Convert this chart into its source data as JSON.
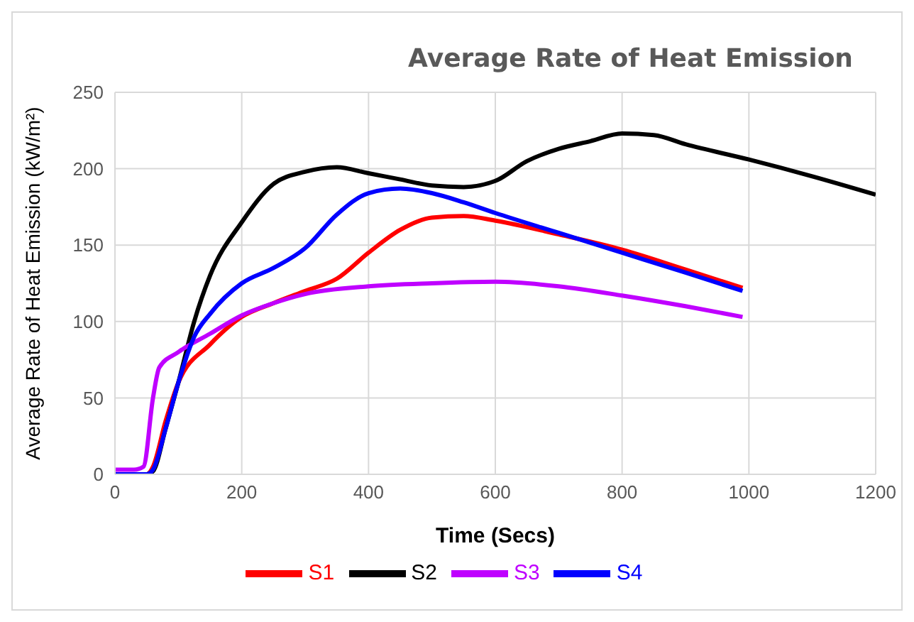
{
  "chart_data": {
    "type": "line",
    "title": "Average Rate of Heat Emission",
    "xlabel": "Time (Secs)",
    "ylabel": "Average Rate of Heat Emission (kW/m²)",
    "xlim": [
      0,
      1200
    ],
    "xticks": [
      0,
      200,
      400,
      600,
      800,
      1000,
      1200
    ],
    "ylim": [
      0,
      250
    ],
    "yticks": [
      0,
      50,
      100,
      150,
      200,
      250
    ],
    "grid": true,
    "legend": "bottom",
    "marker": "none",
    "line_style": "solid",
    "series": [
      {
        "name": "S1",
        "color": "#ff0000",
        "x": [
          0,
          50,
          60,
          80,
          100,
          150,
          200,
          250,
          300,
          350,
          400,
          450,
          500,
          550,
          600,
          700,
          800,
          900,
          990
        ],
        "values": [
          0,
          0,
          5,
          35,
          60,
          85,
          103,
          112,
          120,
          128,
          145,
          160,
          168,
          169,
          166,
          157,
          147,
          134,
          122
        ]
      },
      {
        "name": "S2",
        "color": "#000000",
        "x": [
          0,
          50,
          60,
          80,
          100,
          125,
          150,
          200,
          250,
          300,
          350,
          400,
          450,
          500,
          550,
          600,
          650,
          700,
          750,
          800,
          850,
          900,
          1000,
          1100,
          1200
        ],
        "values": [
          0,
          0,
          2,
          30,
          60,
          100,
          130,
          165,
          190,
          198,
          201,
          197,
          193,
          189,
          188,
          192,
          205,
          213,
          218,
          223,
          222,
          216,
          206,
          195,
          183
        ]
      },
      {
        "name": "S3",
        "color": "#bf00ff",
        "x": [
          0,
          30,
          45,
          60,
          70,
          100,
          150,
          200,
          250,
          300,
          400,
          500,
          600,
          700,
          800,
          900,
          990
        ],
        "values": [
          3,
          3,
          5,
          50,
          70,
          80,
          92,
          104,
          112,
          118,
          123,
          125,
          126,
          123,
          117,
          110,
          103
        ]
      },
      {
        "name": "S4",
        "color": "#0000ff",
        "x": [
          0,
          50,
          60,
          80,
          100,
          125,
          150,
          200,
          250,
          300,
          350,
          400,
          450,
          500,
          550,
          600,
          700,
          800,
          900,
          990
        ],
        "values": [
          0,
          0,
          3,
          30,
          60,
          90,
          105,
          125,
          135,
          148,
          170,
          184,
          187,
          184,
          178,
          171,
          158,
          145,
          132,
          120
        ]
      }
    ]
  }
}
